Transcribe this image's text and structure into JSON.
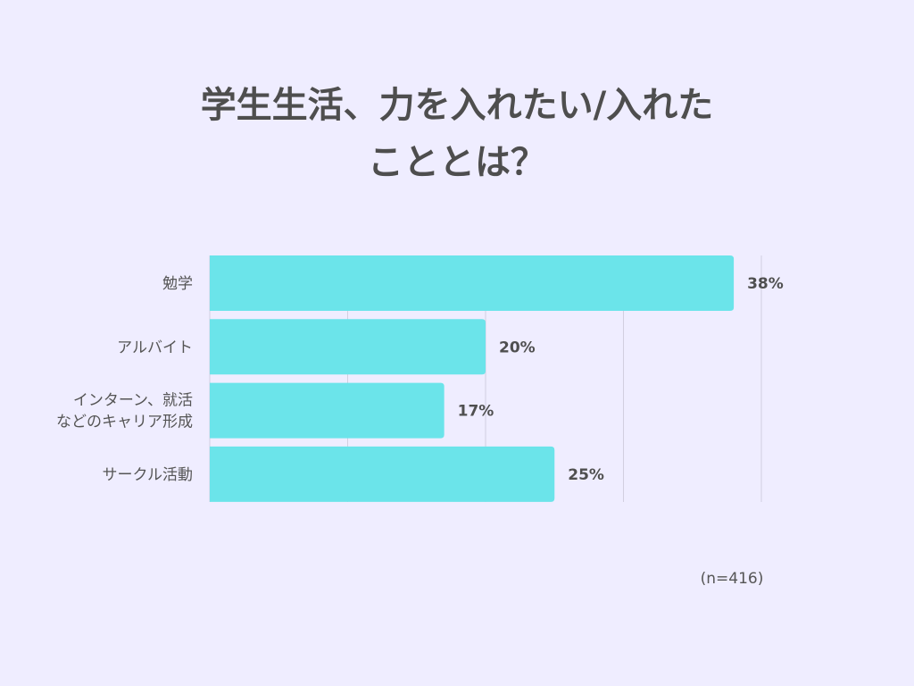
{
  "title_lines": [
    "学生生活、力を入れたい/入れた",
    "こととは？"
  ],
  "note": "(n=416)",
  "colors": {
    "background": "#efedff",
    "bar": "#6be4ea",
    "grid": "#d2cfe0",
    "text": "#505050"
  },
  "chart_data": {
    "type": "bar",
    "orientation": "horizontal",
    "title": "学生生活、力を入れたい/入れたこととは？",
    "categories": [
      [
        "勉学"
      ],
      [
        "アルバイト"
      ],
      [
        "インターン、就活",
        "などのキャリア形成"
      ],
      [
        "サークル活動"
      ]
    ],
    "values": [
      38,
      20,
      17,
      25
    ],
    "value_labels": [
      "38%",
      "20%",
      "17%",
      "25%"
    ],
    "unit": "%",
    "xlim": [
      0,
      40
    ],
    "grid": true,
    "legend": "none"
  }
}
